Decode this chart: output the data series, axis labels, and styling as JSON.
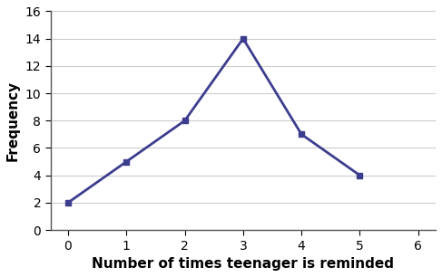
{
  "x": [
    0,
    1,
    2,
    3,
    4,
    5
  ],
  "y": [
    2,
    5,
    8,
    14,
    7,
    4
  ],
  "line_color": "#3d3d8f",
  "marker": "s",
  "marker_size": 5,
  "xlabel": "Number of times teenager is reminded",
  "ylabel": "Frequency",
  "xlim": [
    -0.3,
    6.3
  ],
  "ylim": [
    0,
    16
  ],
  "xticks": [
    0,
    1,
    2,
    3,
    4,
    5,
    6
  ],
  "yticks": [
    0,
    2,
    4,
    6,
    8,
    10,
    12,
    14,
    16
  ],
  "xlabel_fontsize": 11,
  "ylabel_fontsize": 11,
  "tick_fontsize": 10,
  "background_color": "#ffffff",
  "grid_color": "#cccccc",
  "linewidth": 2.0
}
